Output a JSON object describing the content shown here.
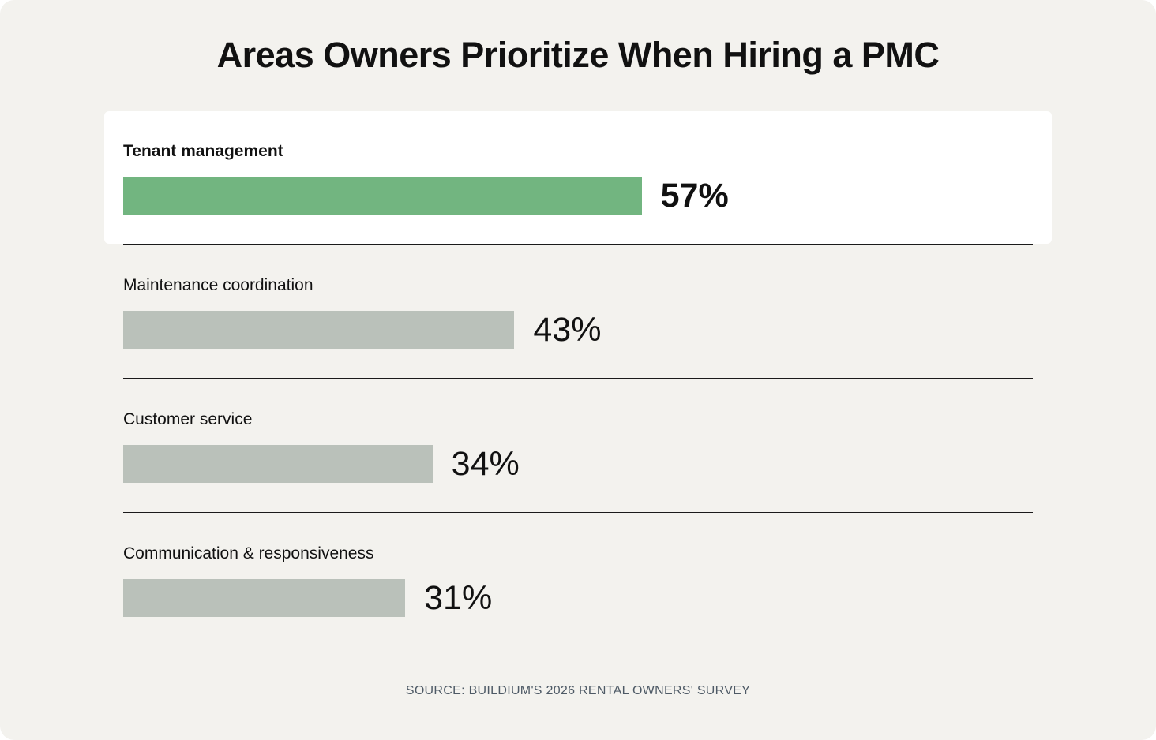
{
  "chart_data": {
    "type": "bar",
    "orientation": "horizontal",
    "title": "Areas Owners Prioritize When Hiring a PMC",
    "categories": [
      "Tenant management",
      "Maintenance coordination",
      "Customer service",
      "Communication & responsiveness"
    ],
    "values": [
      57,
      43,
      34,
      31
    ],
    "value_labels": [
      "57%",
      "43%",
      "34%",
      "31%"
    ],
    "unit": "%",
    "xlim": [
      0,
      100
    ],
    "grid": false,
    "highlight_index": 0,
    "colors": {
      "highlight": "#72b580",
      "default": "#bac1ba"
    }
  },
  "footer": {
    "source": "SOURCE: BUILDIUM'S 2026 RENTAL OWNERS' SURVEY"
  },
  "colors": {
    "background": "#f3f2ee",
    "highlight_panel": "#ffffff",
    "text": "#111111",
    "source_text": "#4e5a66"
  }
}
